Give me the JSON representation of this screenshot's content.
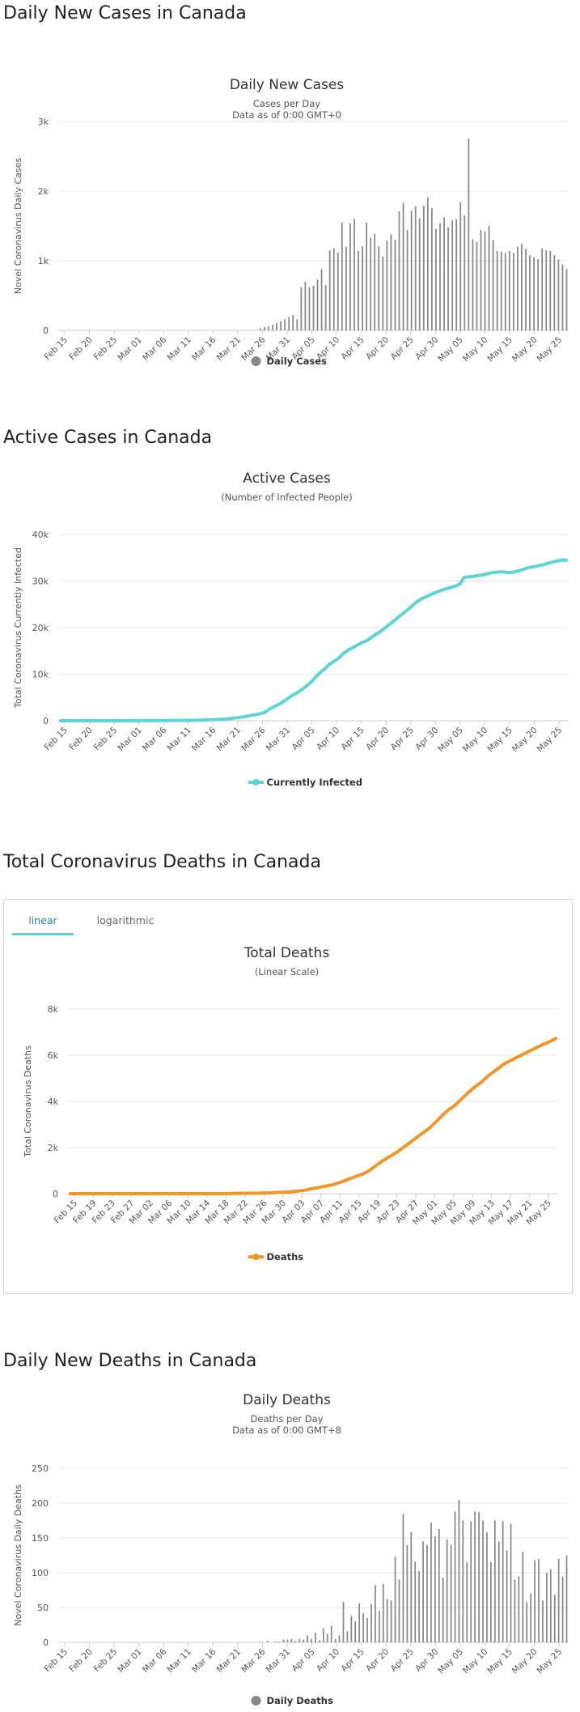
{
  "sections": {
    "daily_cases": {
      "heading": "Daily New Cases in Canada"
    },
    "active_cases": {
      "heading": "Active Cases in Canada"
    },
    "total_deaths": {
      "heading": "Total Coronavirus Deaths in Canada",
      "tabs": [
        {
          "label": "linear"
        },
        {
          "label": "logarithmic"
        }
      ]
    },
    "daily_deaths": {
      "heading": "Daily New Deaths in Canada"
    }
  },
  "colors": {
    "bars": "#888888",
    "active": "#5dd5d5",
    "deaths": "#f0962b",
    "grid": "#e6e6e6",
    "tab_underline": "#5dcfd6"
  },
  "chart_data": [
    {
      "id": "daily-cases",
      "type": "bar",
      "title": "Daily New Cases",
      "subtitle_lines": [
        "Cases per Day",
        "Data as of 0:00 GMT+0"
      ],
      "ylabel": "Novel Coronavirus Daily Cases",
      "ylim": [
        0,
        3000
      ],
      "yticks": [
        0,
        1000,
        2000,
        3000
      ],
      "ytick_labels": [
        "0",
        "1k",
        "2k",
        "3k"
      ],
      "grid": true,
      "legend": "bottom",
      "x_start": "Feb 15",
      "x_end": "May 28",
      "xtick_labels": [
        "Feb 15",
        "Feb 20",
        "Feb 25",
        "Mar 01",
        "Mar 06",
        "Mar 11",
        "Mar 16",
        "Mar 21",
        "Mar 26",
        "Mar 31",
        "Apr 05",
        "Apr 10",
        "Apr 15",
        "Apr 20",
        "Apr 25",
        "Apr 30",
        "May 05",
        "May 10",
        "May 15",
        "May 20",
        "May 25"
      ],
      "series": [
        {
          "name": "Daily Cases",
          "values": [
            0,
            0,
            0,
            0,
            0,
            0,
            0,
            0,
            0,
            0,
            0,
            0,
            0,
            0,
            0,
            0,
            0,
            0,
            0,
            0,
            0,
            0,
            0,
            0,
            0,
            0,
            0,
            0,
            0,
            0,
            0,
            0,
            0,
            0,
            0,
            0,
            0,
            0,
            0,
            0,
            0,
            0,
            0,
            0,
            0,
            0,
            0,
            0,
            0,
            30,
            50,
            60,
            80,
            110,
            130,
            160,
            190,
            220,
            160,
            620,
            700,
            620,
            640,
            730,
            880,
            650,
            1150,
            1180,
            1120,
            1550,
            1200,
            1540,
            1600,
            1140,
            1210,
            1550,
            1330,
            1390,
            1210,
            1060,
            1290,
            1380,
            1300,
            1710,
            1830,
            1440,
            1720,
            1780,
            1610,
            1790,
            1910,
            1760,
            1460,
            1540,
            1620,
            1480,
            1580,
            1600,
            1840,
            1650,
            2750,
            1310,
            1270,
            1440,
            1420,
            1500,
            1300,
            1140,
            1130,
            1110,
            1140,
            1110,
            1200,
            1240,
            1170,
            1080,
            1050,
            1020,
            1180,
            1150,
            1140,
            1080,
            1020,
            950,
            880
          ]
        }
      ]
    },
    {
      "id": "active-cases",
      "type": "line",
      "title": "Active Cases",
      "subtitle_lines": [
        "(Number of Infected People)"
      ],
      "ylabel": "Total Coronavirus Currently Infected",
      "ylim": [
        0,
        40000
      ],
      "yticks": [
        0,
        10000,
        20000,
        30000,
        40000
      ],
      "ytick_labels": [
        "0",
        "10k",
        "20k",
        "30k",
        "40k"
      ],
      "grid": true,
      "legend": "bottom",
      "x_start": "Feb 15",
      "x_end": "May 28",
      "xtick_labels": [
        "Feb 15",
        "Feb 20",
        "Feb 25",
        "Mar 01",
        "Mar 06",
        "Mar 11",
        "Mar 16",
        "Mar 21",
        "Mar 26",
        "Mar 31",
        "Apr 05",
        "Apr 10",
        "Apr 15",
        "Apr 20",
        "Apr 25",
        "Apr 30",
        "May 05",
        "May 10",
        "May 15",
        "May 20",
        "May 25"
      ],
      "series": [
        {
          "name": "Currently Infected",
          "values": [
            5,
            5,
            5,
            5,
            5,
            5,
            5,
            5,
            5,
            5,
            5,
            5,
            5,
            5,
            5,
            10,
            15,
            20,
            25,
            30,
            35,
            40,
            45,
            50,
            55,
            60,
            70,
            80,
            90,
            110,
            130,
            160,
            200,
            240,
            290,
            350,
            420,
            520,
            640,
            780,
            950,
            1150,
            1300,
            1500,
            1800,
            2500,
            3000,
            3500,
            4100,
            4800,
            5500,
            6000,
            6700,
            7500,
            8300,
            9400,
            10400,
            11200,
            12200,
            12800,
            13500,
            14500,
            15200,
            15700,
            16300,
            16800,
            17200,
            17900,
            18600,
            19200,
            20000,
            20800,
            21600,
            22400,
            23200,
            24000,
            24900,
            25700,
            26300,
            26700,
            27200,
            27600,
            28000,
            28300,
            28600,
            28900,
            29300,
            30800,
            30900,
            31000,
            31200,
            31300,
            31600,
            31800,
            31900,
            32000,
            31900,
            31800,
            32000,
            32300,
            32600,
            32900,
            33100,
            33300,
            33500,
            33800,
            34100,
            34300,
            34500,
            34500
          ]
        }
      ]
    },
    {
      "id": "total-deaths",
      "type": "line",
      "title": "Total Deaths",
      "subtitle_lines": [
        "(Linear Scale)"
      ],
      "ylabel": "Total Coronavirus Deaths",
      "ylim": [
        0,
        8000
      ],
      "yticks": [
        0,
        2000,
        4000,
        6000,
        8000
      ],
      "ytick_labels": [
        "0",
        "2k",
        "4k",
        "6k",
        "8k"
      ],
      "grid": true,
      "legend": "bottom",
      "x_start": "Feb 15",
      "x_end": "May 28",
      "xtick_labels": [
        "Feb 15",
        "Feb 19",
        "Feb 23",
        "Feb 27",
        "Mar 02",
        "Mar 06",
        "Mar 10",
        "Mar 14",
        "Mar 18",
        "Mar 22",
        "Mar 26",
        "Mar 30",
        "Apr 03",
        "Apr 07",
        "Apr 11",
        "Apr 15",
        "Apr 19",
        "Apr 23",
        "Apr 27",
        "May 01",
        "May 05",
        "May 09",
        "May 13",
        "May 17",
        "May 21",
        "May 25"
      ],
      "series": [
        {
          "name": "Deaths",
          "values": [
            0,
            0,
            0,
            0,
            0,
            0,
            0,
            0,
            0,
            0,
            0,
            0,
            0,
            0,
            0,
            0,
            0,
            0,
            0,
            0,
            0,
            0,
            0,
            0,
            0,
            1,
            1,
            1,
            1,
            1,
            1,
            1,
            1,
            2,
            4,
            8,
            12,
            16,
            19,
            21,
            24,
            25,
            30,
            35,
            45,
            55,
            62,
            70,
            90,
            110,
            130,
            160,
            210,
            240,
            280,
            320,
            360,
            400,
            470,
            540,
            620,
            690,
            770,
            830,
            930,
            1050,
            1200,
            1350,
            1480,
            1600,
            1720,
            1850,
            2000,
            2150,
            2300,
            2450,
            2600,
            2740,
            2900,
            3100,
            3300,
            3500,
            3670,
            3800,
            3990,
            4180,
            4370,
            4550,
            4700,
            4850,
            5050,
            5200,
            5350,
            5500,
            5650,
            5750,
            5850,
            5950,
            6050,
            6150,
            6250,
            6350,
            6450,
            6530,
            6620,
            6730
          ]
        }
      ]
    },
    {
      "id": "daily-deaths",
      "type": "bar",
      "title": "Daily Deaths",
      "subtitle_lines": [
        "Deaths per Day",
        "Data as of 0:00 GMT+8"
      ],
      "ylabel": "Novel Coronavirus Daily Deaths",
      "ylim": [
        0,
        250
      ],
      "yticks": [
        0,
        50,
        100,
        150,
        200,
        250
      ],
      "ytick_labels": [
        "0",
        "50",
        "100",
        "150",
        "200",
        "250"
      ],
      "grid": true,
      "legend": "bottom",
      "x_start": "Feb 15",
      "x_end": "May 28",
      "xtick_labels": [
        "Feb 15",
        "Feb 20",
        "Feb 25",
        "Mar 01",
        "Mar 06",
        "Mar 11",
        "Mar 16",
        "Mar 21",
        "Mar 26",
        "Mar 31",
        "Apr 05",
        "Apr 10",
        "Apr 15",
        "Apr 20",
        "Apr 25",
        "Apr 30",
        "May 05",
        "May 10",
        "May 15",
        "May 20",
        "May 25"
      ],
      "series": [
        {
          "name": "Daily Deaths",
          "values": [
            0,
            0,
            0,
            0,
            0,
            0,
            0,
            0,
            0,
            0,
            0,
            0,
            0,
            0,
            0,
            0,
            0,
            0,
            0,
            0,
            0,
            0,
            0,
            0,
            0,
            0,
            0,
            0,
            0,
            0,
            0,
            0,
            0,
            0,
            0,
            0,
            0,
            0,
            0,
            0,
            0,
            0,
            0,
            0,
            0,
            0,
            0,
            0,
            0,
            0,
            1,
            0,
            2,
            0,
            1,
            1,
            4,
            4,
            5,
            2,
            5,
            4,
            10,
            5,
            14,
            3,
            20,
            12,
            24,
            5,
            10,
            58,
            16,
            38,
            30,
            56,
            42,
            35,
            55,
            82,
            45,
            84,
            62,
            60,
            123,
            90,
            184,
            140,
            158,
            116,
            102,
            145,
            140,
            172,
            152,
            163,
            93,
            148,
            140,
            188,
            205,
            175,
            115,
            174,
            188,
            187,
            175,
            158,
            115,
            175,
            145,
            174,
            132,
            170,
            90,
            95,
            130,
            58,
            70,
            118,
            120,
            60,
            100,
            105,
            68,
            120,
            95,
            125
          ]
        }
      ]
    }
  ]
}
